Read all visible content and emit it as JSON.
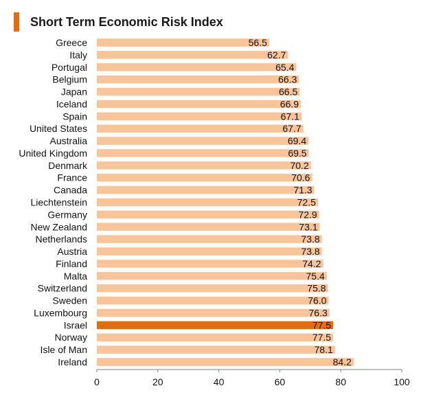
{
  "title": "Short Term Economic Risk Index",
  "colors": {
    "title_accent": "#E46C0A",
    "bar": "#F9C497",
    "highlight_bar": "#E46C0A",
    "axis": "#7f7f7f",
    "text": "#111111"
  },
  "chart_data": {
    "type": "bar",
    "orientation": "horizontal",
    "title": "Short Term Economic Risk Index",
    "categories": [
      "Greece",
      "Italy",
      "Portugal",
      "Belgium",
      "Japan",
      "Iceland",
      "Spain",
      "United States",
      "Australia",
      "United Kingdom",
      "Denmark",
      "France",
      "Canada",
      "Liechtenstein",
      "Germany",
      "New Zealand",
      "Netherlands",
      "Austria",
      "Finland",
      "Malta",
      "Switzerland",
      "Sweden",
      "Luxembourg",
      "Israel",
      "Norway",
      "Isle of Man",
      "Ireland"
    ],
    "values": [
      56.5,
      62.7,
      65.4,
      66.3,
      66.5,
      66.9,
      67.1,
      67.7,
      69.4,
      69.5,
      70.2,
      70.6,
      71.3,
      72.5,
      72.9,
      73.1,
      73.8,
      73.8,
      74.2,
      75.4,
      75.8,
      76.0,
      76.3,
      77.5,
      77.5,
      78.1,
      84.2
    ],
    "value_labels": [
      "56.5",
      "62.7",
      "65.4",
      "66.3",
      "66.5",
      "66.9",
      "67.1",
      "67.7",
      "69.4",
      "69.5",
      "70.2",
      "70.6",
      "71.3",
      "72.5",
      "72.9",
      "73.1",
      "73.8",
      "73.8",
      "74.2",
      "75.4",
      "75.8",
      "76.0",
      "76.3",
      "77.5",
      "77.5",
      "78.1",
      "84.2"
    ],
    "highlight": "Israel",
    "xlim": [
      0,
      100
    ],
    "xticks": [
      "0",
      "20",
      "40",
      "60",
      "80",
      "100"
    ],
    "xlabel": "",
    "ylabel": "",
    "grid": false,
    "legend": "none"
  }
}
